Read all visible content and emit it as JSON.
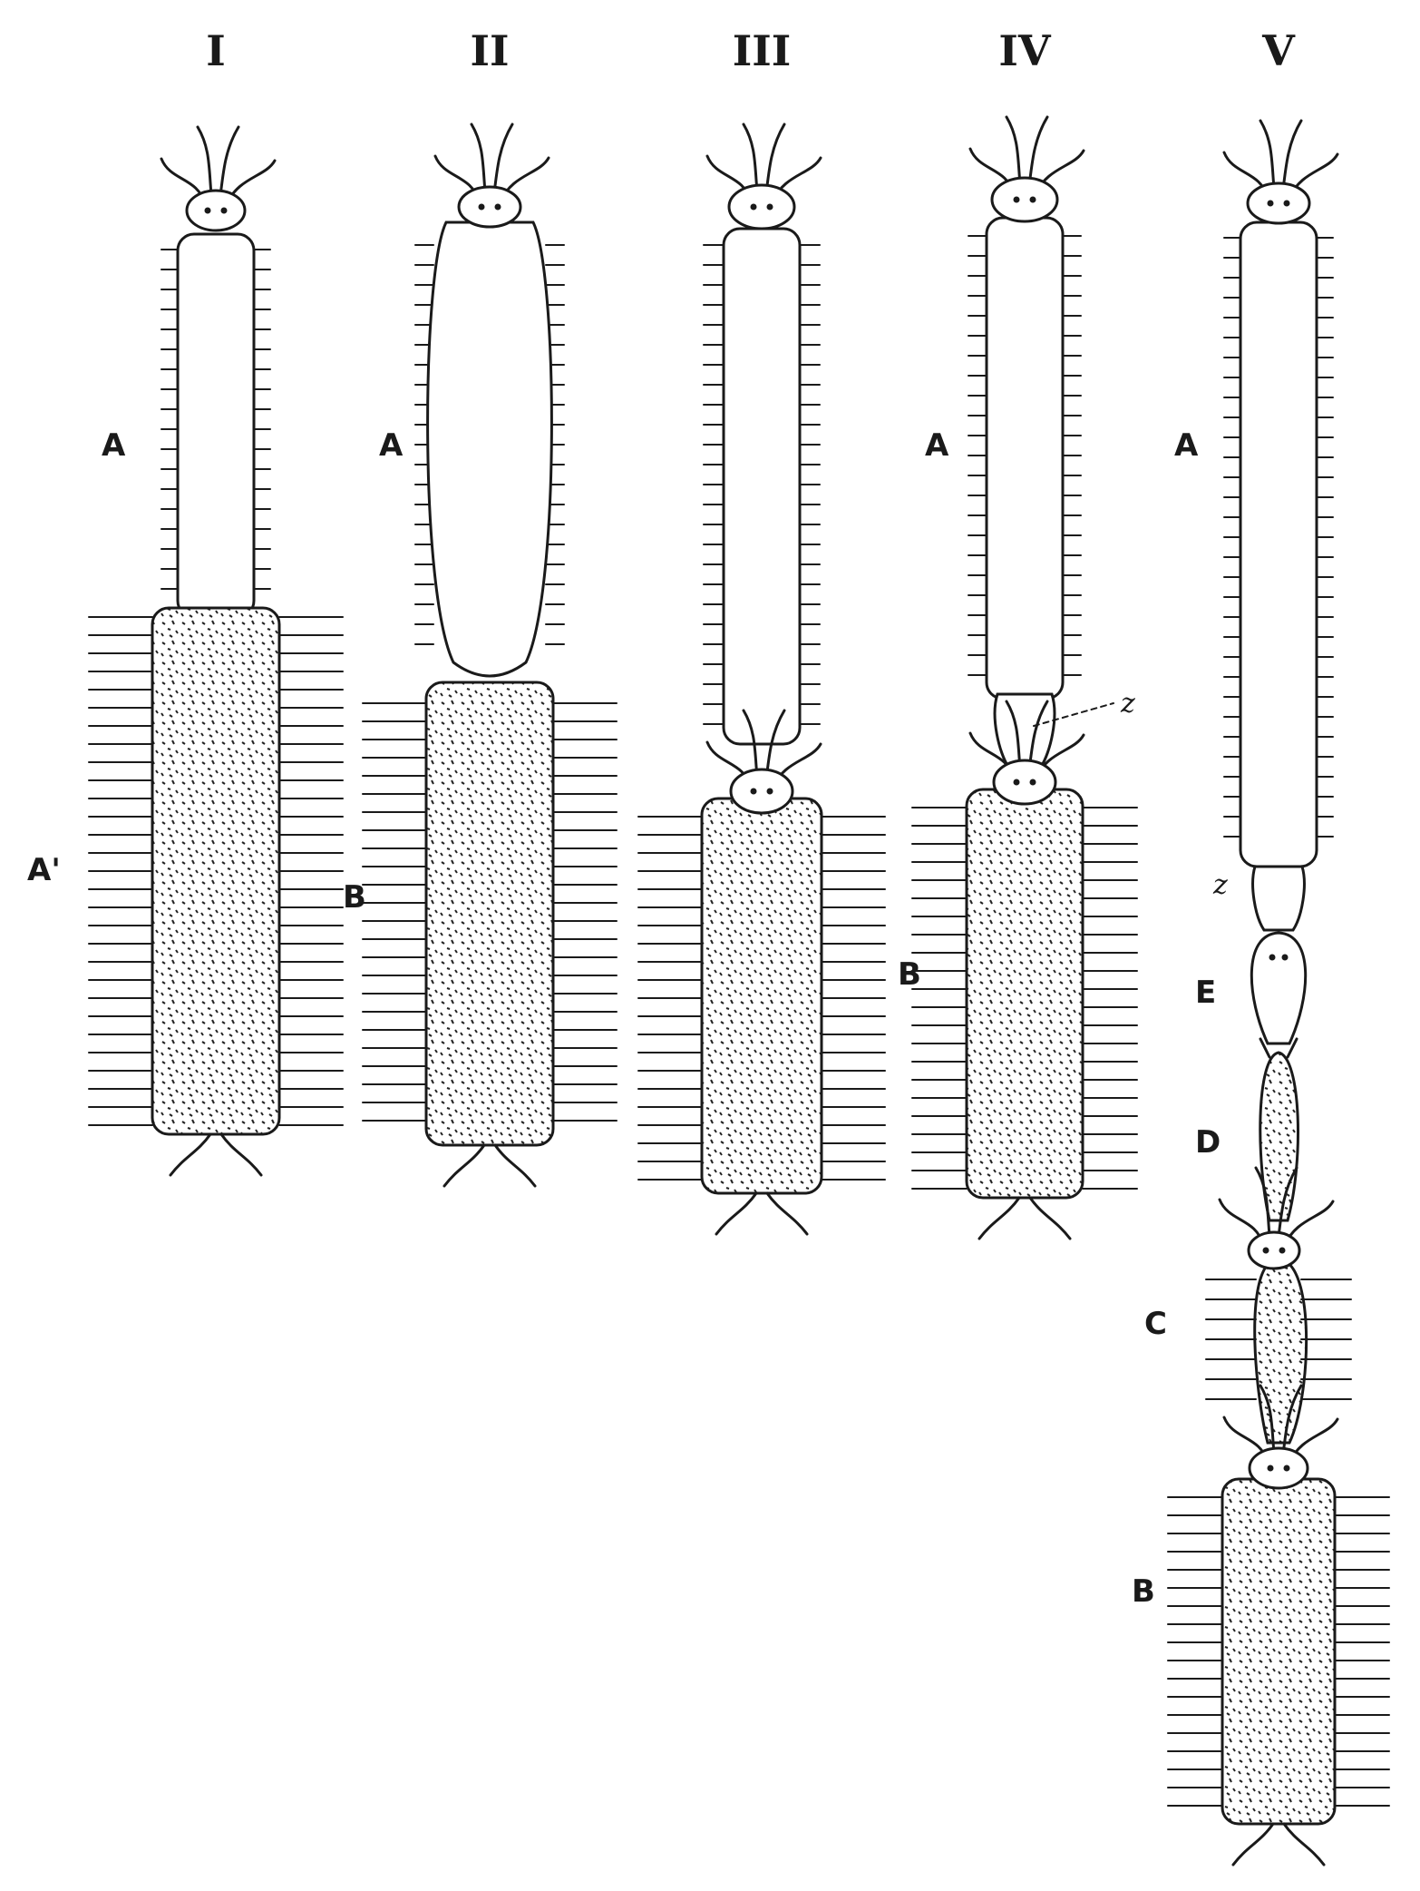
{
  "figures": [
    {
      "numeral": "I",
      "labels": [
        "A",
        "A'"
      ]
    },
    {
      "numeral": "II",
      "labels": [
        "A",
        "B"
      ]
    },
    {
      "numeral": "III",
      "labels": [
        "B"
      ]
    },
    {
      "numeral": "IV",
      "labels": [
        "A",
        "z"
      ]
    },
    {
      "numeral": "V",
      "labels": [
        "A",
        "z",
        "E",
        "D",
        "C",
        "B"
      ]
    }
  ]
}
